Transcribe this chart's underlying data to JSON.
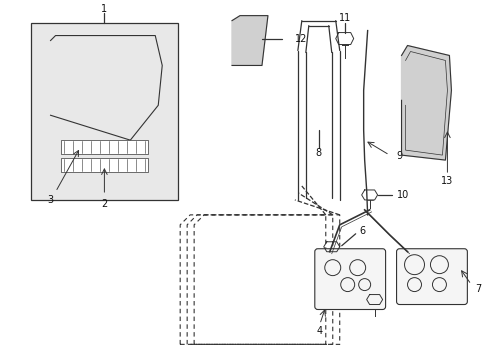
{
  "bg_color": "#ffffff",
  "fig_width": 4.89,
  "fig_height": 3.6,
  "dpi": 100,
  "line_color": "#333333",
  "label_color": "#111111",
  "fill_color": "#e8e8e8",
  "glass_fill": "#d4d4d4"
}
